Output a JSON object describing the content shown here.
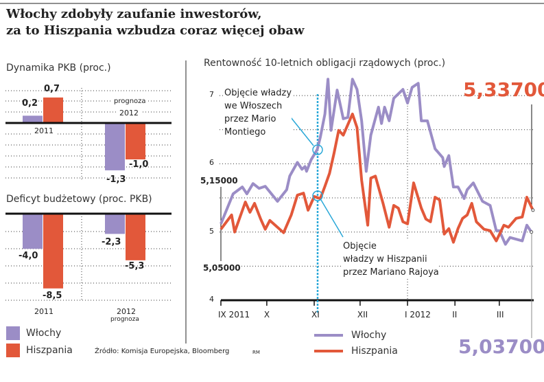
{
  "title_line1": "Włochy zdobyły zaufanie inwestorów,",
  "title_line2": "za to Hiszpania wzbudza coraz więcej obaw",
  "colors": {
    "italy": "#9b8dc6",
    "spain": "#e2583a",
    "annotation": "#2aa8d8"
  },
  "legend": {
    "italy": "Włochy",
    "spain": "Hiszpania"
  },
  "source": "Źródło: Komisja Europejska, Bloomberg",
  "author": "RM",
  "chart_data": [
    {
      "type": "bar",
      "title": "Dynamika PKB (proc.)",
      "categories": [
        "2011",
        "2012"
      ],
      "category_notes": [
        "",
        "prognoza"
      ],
      "series": [
        {
          "name": "Włochy",
          "values": [
            0.2,
            -1.3
          ],
          "labels": [
            "0,2",
            "-1,3"
          ]
        },
        {
          "name": "Hiszpania",
          "values": [
            0.7,
            -1.0
          ],
          "labels": [
            "0,7",
            "-1,0"
          ]
        }
      ]
    },
    {
      "type": "bar",
      "title": "Deficyt budżetowy (proc. PKB)",
      "categories": [
        "2011",
        "2012"
      ],
      "category_notes": [
        "",
        "prognoza"
      ],
      "series": [
        {
          "name": "Włochy",
          "values": [
            -4.0,
            -2.3
          ],
          "labels": [
            "-4,0",
            "-2,3"
          ]
        },
        {
          "name": "Hiszpania",
          "values": [
            -8.5,
            -5.3
          ],
          "labels": [
            "-8,5",
            "-5,3"
          ]
        }
      ]
    },
    {
      "type": "line",
      "title": "Rentowność 10-letnich obligacji rządowych (proc.)",
      "ylim": [
        4,
        7.3
      ],
      "yticks": [
        "4",
        "5",
        "6",
        "7"
      ],
      "xticks": [
        {
          "label": "IX 2011",
          "date": "2011-09-01"
        },
        {
          "label": "X",
          "date": "2011-10-01"
        },
        {
          "label": "XI",
          "date": "2011-11-01"
        },
        {
          "label": "XII",
          "date": "2011-12-01"
        },
        {
          "label": "I 2012",
          "date": "2012-01-01"
        },
        {
          "label": "II",
          "date": "2012-02-01"
        },
        {
          "label": "III",
          "date": "2012-03-01"
        }
      ],
      "grid": true,
      "series": [
        {
          "name": "Włochy",
          "end_label": "5,03700",
          "start_label": "5,15000",
          "points": [
            [
              "2011-09-01",
              5.12
            ],
            [
              "2011-09-09",
              5.56
            ],
            [
              "2011-09-15",
              5.66
            ],
            [
              "2011-09-18",
              5.56
            ],
            [
              "2011-09-22",
              5.71
            ],
            [
              "2011-09-26",
              5.64
            ],
            [
              "2011-09-30",
              5.67
            ],
            [
              "2011-10-08",
              5.45
            ],
            [
              "2011-10-14",
              5.62
            ],
            [
              "2011-10-16",
              5.82
            ],
            [
              "2011-10-21",
              6.02
            ],
            [
              "2011-10-24",
              5.92
            ],
            [
              "2011-10-26",
              5.96
            ],
            [
              "2011-10-27",
              5.89
            ],
            [
              "2011-10-30",
              6.06
            ],
            [
              "2011-11-03",
              6.21
            ],
            [
              "2011-11-05",
              6.39
            ],
            [
              "2011-11-08",
              6.73
            ],
            [
              "2011-11-10",
              7.24
            ],
            [
              "2011-11-12",
              6.49
            ],
            [
              "2011-11-16",
              7.08
            ],
            [
              "2011-11-20",
              6.66
            ],
            [
              "2011-11-23",
              6.68
            ],
            [
              "2011-11-26",
              7.24
            ],
            [
              "2011-11-29",
              7.09
            ],
            [
              "2011-12-02",
              6.63
            ],
            [
              "2011-12-05",
              5.89
            ],
            [
              "2011-12-08",
              6.42
            ],
            [
              "2011-12-13",
              6.83
            ],
            [
              "2011-12-15",
              6.59
            ],
            [
              "2011-12-17",
              6.83
            ],
            [
              "2011-12-20",
              6.63
            ],
            [
              "2011-12-23",
              6.96
            ],
            [
              "2011-12-29",
              7.09
            ],
            [
              "2012-01-01",
              6.89
            ],
            [
              "2012-01-04",
              7.12
            ],
            [
              "2012-01-08",
              7.18
            ],
            [
              "2012-01-10",
              6.63
            ],
            [
              "2012-01-14",
              6.63
            ],
            [
              "2012-01-19",
              6.22
            ],
            [
              "2012-01-24",
              6.09
            ],
            [
              "2012-01-25",
              5.96
            ],
            [
              "2012-01-28",
              6.12
            ],
            [
              "2012-01-31",
              5.66
            ],
            [
              "2012-02-03",
              5.66
            ],
            [
              "2012-02-07",
              5.49
            ],
            [
              "2012-02-09",
              5.62
            ],
            [
              "2012-02-13",
              5.72
            ],
            [
              "2012-02-19",
              5.45
            ],
            [
              "2012-02-24",
              5.39
            ],
            [
              "2012-02-28",
              5.02
            ],
            [
              "2012-03-01",
              5.02
            ],
            [
              "2012-03-05",
              4.82
            ],
            [
              "2012-03-08",
              4.92
            ],
            [
              "2012-03-16",
              4.87
            ],
            [
              "2012-03-19",
              5.1
            ],
            [
              "2012-03-22",
              5.0
            ]
          ]
        },
        {
          "name": "Hiszpania",
          "end_label": "5,33700",
          "start_label": "5,05000",
          "points": [
            [
              "2011-09-01",
              5.04
            ],
            [
              "2011-09-08",
              5.25
            ],
            [
              "2011-09-10",
              5.0
            ],
            [
              "2011-09-17",
              5.44
            ],
            [
              "2011-09-20",
              5.29
            ],
            [
              "2011-09-23",
              5.42
            ],
            [
              "2011-09-27",
              5.19
            ],
            [
              "2011-09-30",
              5.04
            ],
            [
              "2011-10-03",
              5.17
            ],
            [
              "2011-10-12",
              4.99
            ],
            [
              "2011-10-17",
              5.25
            ],
            [
              "2011-10-21",
              5.54
            ],
            [
              "2011-10-25",
              5.57
            ],
            [
              "2011-10-28",
              5.32
            ],
            [
              "2011-11-01",
              5.52
            ],
            [
              "2011-11-05",
              5.49
            ],
            [
              "2011-11-08",
              5.67
            ],
            [
              "2011-11-11",
              5.86
            ],
            [
              "2011-11-14",
              6.16
            ],
            [
              "2011-11-17",
              6.49
            ],
            [
              "2011-11-20",
              6.42
            ],
            [
              "2011-11-26",
              6.73
            ],
            [
              "2011-11-29",
              6.53
            ],
            [
              "2011-12-02",
              5.76
            ],
            [
              "2011-12-06",
              5.1
            ],
            [
              "2011-12-08",
              5.79
            ],
            [
              "2011-12-11",
              5.82
            ],
            [
              "2011-12-16",
              5.42
            ],
            [
              "2011-12-20",
              5.07
            ],
            [
              "2011-12-23",
              5.39
            ],
            [
              "2011-12-26",
              5.35
            ],
            [
              "2011-12-29",
              5.15
            ],
            [
              "2012-01-01",
              5.12
            ],
            [
              "2012-01-05",
              5.72
            ],
            [
              "2012-01-10",
              5.35
            ],
            [
              "2012-01-13",
              5.19
            ],
            [
              "2012-01-16",
              5.15
            ],
            [
              "2012-01-19",
              5.51
            ],
            [
              "2012-01-22",
              5.47
            ],
            [
              "2012-01-25",
              4.97
            ],
            [
              "2012-01-28",
              5.05
            ],
            [
              "2012-01-31",
              4.85
            ],
            [
              "2012-02-03",
              5.05
            ],
            [
              "2012-02-06",
              5.2
            ],
            [
              "2012-02-09",
              5.25
            ],
            [
              "2012-02-12",
              5.42
            ],
            [
              "2012-02-15",
              5.15
            ],
            [
              "2012-02-20",
              5.04
            ],
            [
              "2012-02-24",
              5.02
            ],
            [
              "2012-02-28",
              4.87
            ],
            [
              "2012-03-04",
              5.1
            ],
            [
              "2012-03-07",
              5.07
            ],
            [
              "2012-03-12",
              5.2
            ],
            [
              "2012-03-16",
              5.22
            ],
            [
              "2012-03-19",
              5.51
            ],
            [
              "2012-03-23",
              5.32
            ]
          ]
        }
      ],
      "annotations": [
        {
          "text_lines": [
            "Objęcie władzy",
            "we Włoszech",
            "przez Mario",
            "Montiego"
          ],
          "series": "Włochy"
        },
        {
          "text_lines": [
            "Objęcie",
            "władzy w Hiszpanii",
            "przez Mariano Rajoya"
          ],
          "series": "Hiszpania"
        }
      ]
    }
  ]
}
